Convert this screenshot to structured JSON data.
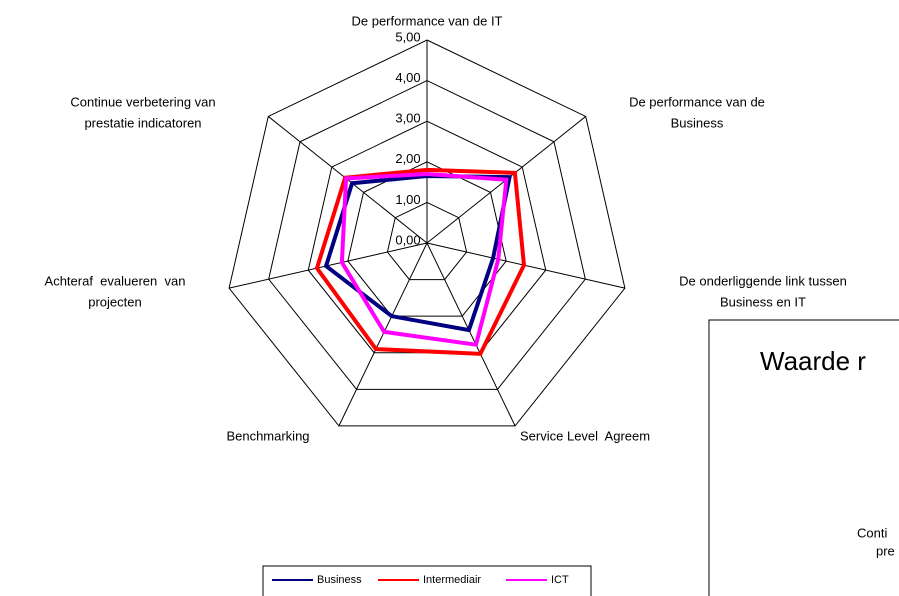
{
  "chart_data": {
    "type": "radar",
    "categories": [
      [
        "De performance van de IT"
      ],
      [
        "De performance van de",
        "Business"
      ],
      [
        "De onderliggende link tussen",
        "Business en IT"
      ],
      [
        "Service Level  Agreem"
      ],
      [
        "Benchmarking"
      ],
      [
        "Achteraf  evalueren  van",
        "projecten"
      ],
      [
        "Continue verbetering van",
        "prestatie indicatoren"
      ]
    ],
    "series": [
      {
        "name": "Business",
        "color": "#000080",
        "values": [
          1.65,
          2.6,
          1.67,
          2.38,
          2.0,
          2.55,
          2.36
        ]
      },
      {
        "name": "Intermediair",
        "color": "#ff0000",
        "values": [
          1.8,
          2.77,
          2.45,
          3.03,
          2.9,
          2.78,
          2.58
        ]
      },
      {
        "name": "ICT",
        "color": "#ff00ff",
        "values": [
          1.7,
          2.5,
          1.8,
          2.78,
          2.43,
          2.15,
          2.55
        ]
      }
    ],
    "rlim": [
      0,
      5
    ],
    "rticks": [
      {
        "value": 0,
        "label": "0,00"
      },
      {
        "value": 1,
        "label": "1,00"
      },
      {
        "value": 2,
        "label": "2,00"
      },
      {
        "value": 3,
        "label": "3,00"
      },
      {
        "value": 4,
        "label": "4,00"
      },
      {
        "value": 5,
        "label": "5,00"
      }
    ],
    "legend": "bottom"
  },
  "second_chart": {
    "title": "Waarde r",
    "labels": [
      "Conti",
      "pre"
    ]
  }
}
